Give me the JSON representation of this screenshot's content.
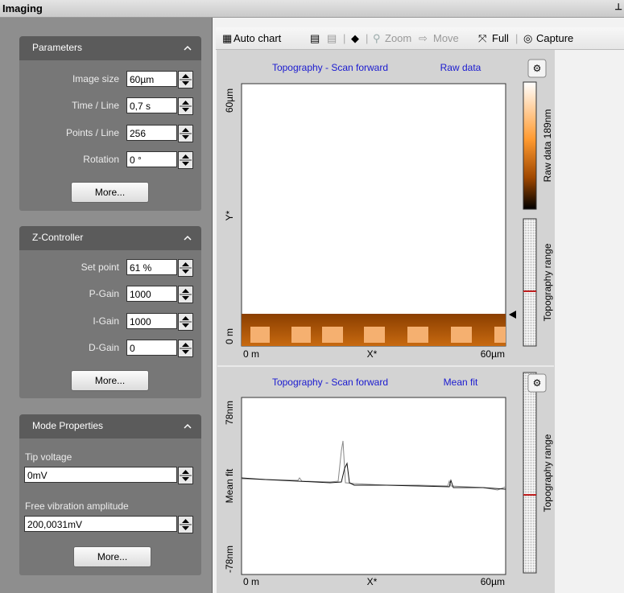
{
  "window": {
    "title": "Imaging"
  },
  "panels": [
    {
      "title": "Parameters",
      "fields": [
        {
          "label": "Image size",
          "value": "60µm"
        },
        {
          "label": "Time / Line",
          "value": "0,7 s"
        },
        {
          "label": "Points / Line",
          "value": "256"
        },
        {
          "label": "Rotation",
          "value": "0 °"
        }
      ],
      "button": "More..."
    },
    {
      "title": "Z-Controller",
      "fields": [
        {
          "label": "Set point",
          "value": "61 %"
        },
        {
          "label": "P-Gain",
          "value": "1000"
        },
        {
          "label": "I-Gain",
          "value": "1000"
        },
        {
          "label": "D-Gain",
          "value": "0"
        }
      ],
      "button": "More..."
    },
    {
      "title": "Mode Properties",
      "fields": [
        {
          "label": "Tip voltage",
          "value": "0mV"
        },
        {
          "label": "Free vibration amplitude",
          "value": "200,0031mV"
        }
      ],
      "button": "More..."
    }
  ],
  "toolbar": {
    "items": [
      "Auto chart",
      "Zoom",
      "Move",
      "Full",
      "Capture"
    ]
  },
  "charts": [
    {
      "title": "Topography - Scan forward",
      "mode": "Raw data",
      "y_top": "60µm",
      "y_label": "Y*",
      "y_bottom": "0 m",
      "x_left": "0 m",
      "x_label": "X*",
      "x_right": "60µm",
      "colorbar_label": "Raw data 189nm",
      "range_label": "Topography range"
    },
    {
      "title": "Topography - Scan forward",
      "mode": "Mean fit",
      "y_top": "78nm",
      "y_label": "Mean fit",
      "y_bottom": "-78nm",
      "x_left": "0 m",
      "x_label": "X*",
      "x_right": "60µm",
      "range_label": "Topography range"
    }
  ]
}
